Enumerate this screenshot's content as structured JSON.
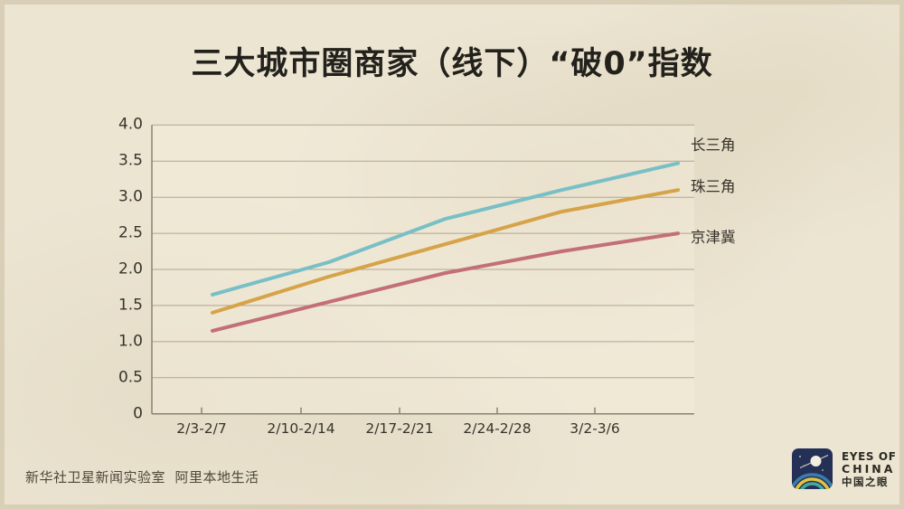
{
  "title": "三大城市圈商家（线下）“破0”指数",
  "colors": {
    "background": "#ece5d2",
    "plot_background": "#f3eedb",
    "grid": "#b0a78f",
    "axis": "#8b8370",
    "text_dark": "#23211c",
    "text_label": "#38342b",
    "logo_navy": "#243056"
  },
  "chart_data": {
    "type": "line",
    "categories": [
      "2/3-2/7",
      "2/10-2/14",
      "2/17-2/21",
      "2/24-2/28",
      "3/2-3/6"
    ],
    "series": [
      {
        "name": "长三角",
        "color": "#78bfc6",
        "values": [
          1.65,
          2.1,
          2.7,
          3.1,
          3.47
        ]
      },
      {
        "name": "珠三角",
        "color": "#d6a348",
        "values": [
          1.4,
          1.9,
          2.35,
          2.8,
          3.1
        ]
      },
      {
        "name": "京津冀",
        "color": "#c36f77",
        "values": [
          1.15,
          1.55,
          1.95,
          2.25,
          2.5
        ]
      }
    ],
    "title": "三大城市圈商家（线下）“破0”指数",
    "xlabel": "",
    "ylabel": "",
    "ylim": [
      0,
      4.0
    ],
    "ytick_step": 0.5,
    "ytick_labels_top_down": [
      "4.0",
      "3.5",
      "3.0",
      "2.5",
      "2.0",
      "1.5",
      "1.0",
      "0.5",
      "0"
    ],
    "grid": true,
    "legend_position": "right-of-line-ends"
  },
  "footer": {
    "credit": "新华社卫星新闻实验室  阿里本地生活"
  },
  "logo": {
    "icon": "satellite-planet-rainbow-icon",
    "line1": "EYES OF",
    "line2": "CHINA",
    "line3": "中国之眼"
  }
}
